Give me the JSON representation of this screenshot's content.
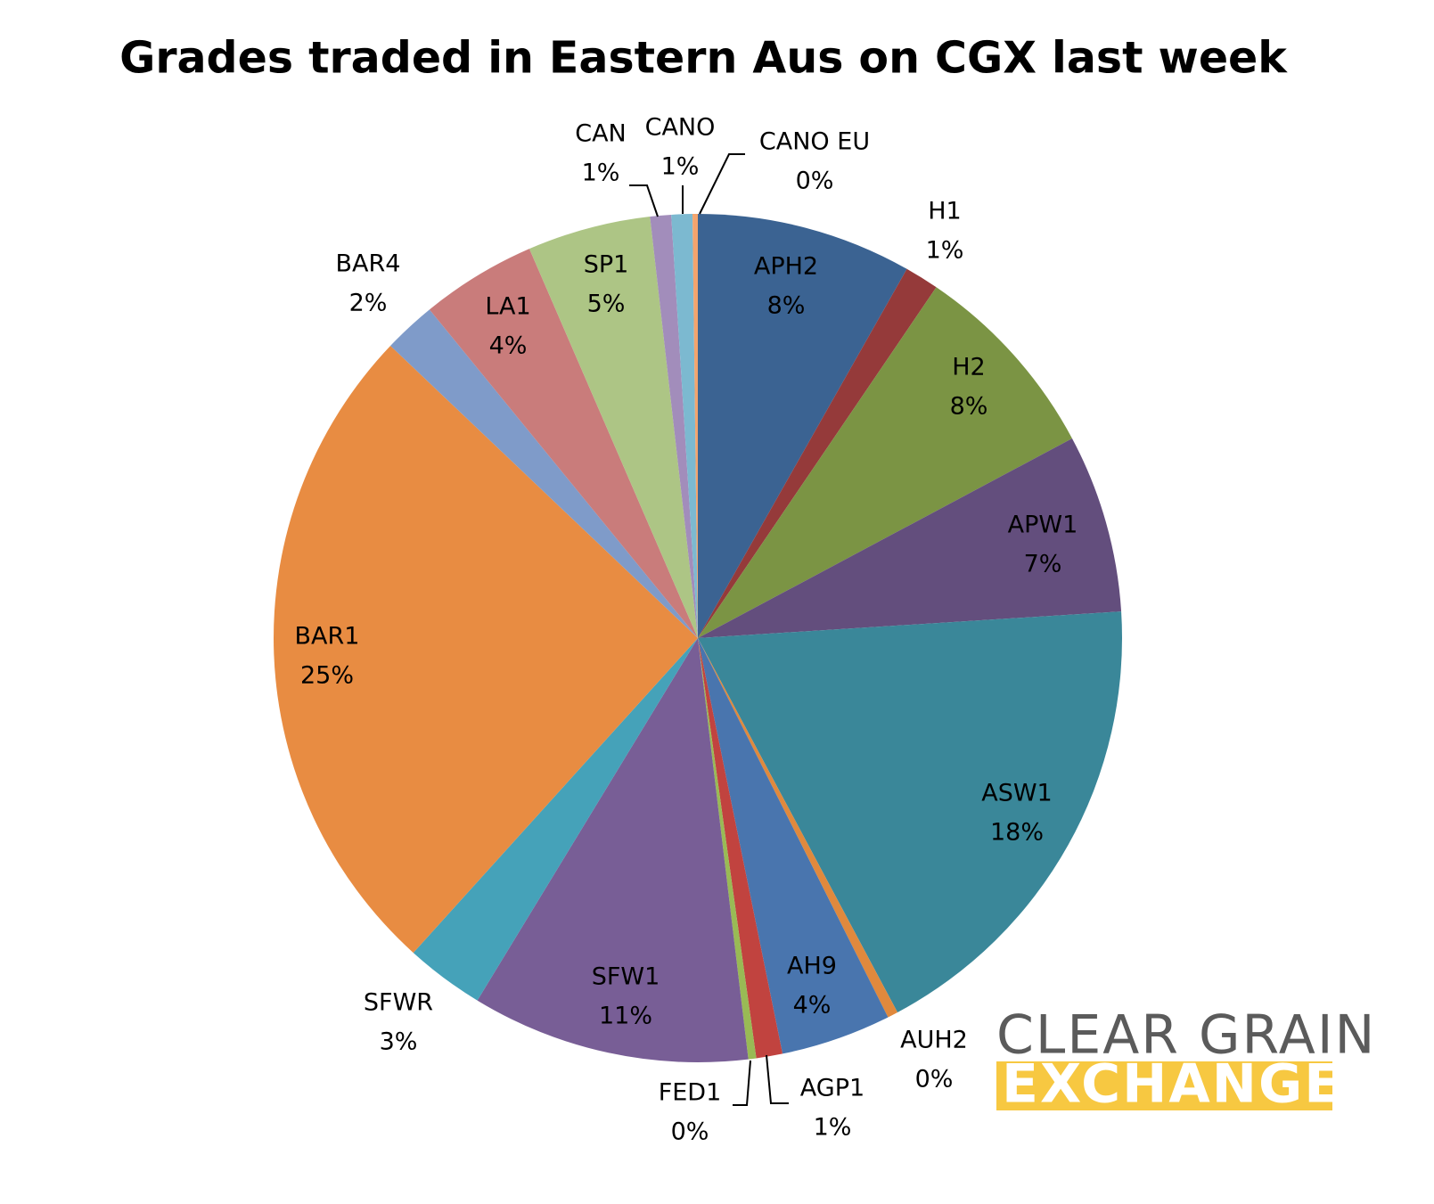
{
  "chart_data": {
    "type": "pie",
    "title": "Grades traded in Eastern Aus on CGX last week",
    "categories": [
      "APH2",
      "H1",
      "H2",
      "APW1",
      "ASW1",
      "AUH2",
      "AH9",
      "AGP1",
      "FED1",
      "SFW1",
      "SFWR",
      "BAR1",
      "BAR4",
      "LA1",
      "SP1",
      "CAN",
      "CANO",
      "CANO EU"
    ],
    "values": [
      8.2,
      1.3,
      7.7,
      6.8,
      18.2,
      0.4,
      4.2,
      1.0,
      0.3,
      10.6,
      3.0,
      25.4,
      2.0,
      4.4,
      4.7,
      0.8,
      0.8,
      0.2
    ],
    "value_labels": [
      "8%",
      "1%",
      "8%",
      "7%",
      "18%",
      "0%",
      "4%",
      "1%",
      "0%",
      "11%",
      "3%",
      "25%",
      "2%",
      "4%",
      "5%",
      "1%",
      "1%",
      "0%"
    ],
    "colors": [
      "#3b6392",
      "#953a3a",
      "#7b9444",
      "#634e7d",
      "#3a8799",
      "#e0893d",
      "#4975ae",
      "#c1433f",
      "#99ba55",
      "#785e96",
      "#45a2b9",
      "#e88c42",
      "#7f9bc9",
      "#c97c7b",
      "#adc585",
      "#a28dbb",
      "#7cb9d0",
      "#f3a46d"
    ]
  },
  "logo": {
    "line1": "CLEAR GRAIN",
    "line2": "EXCHANGE"
  }
}
